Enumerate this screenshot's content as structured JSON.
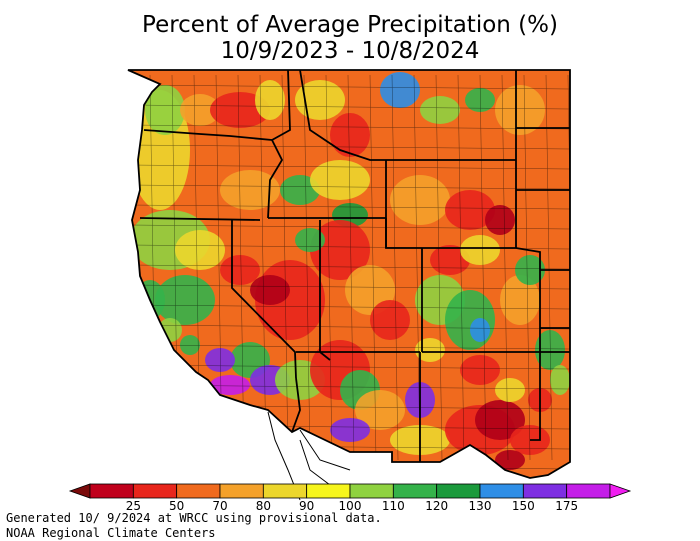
{
  "title": {
    "line1": "Percent of Average Precipitation (%)",
    "line2": "10/9/2023 - 10/8/2024"
  },
  "legend": {
    "ticks": [
      "25",
      "50",
      "70",
      "80",
      "90",
      "100",
      "110",
      "120",
      "130",
      "150",
      "175"
    ],
    "colors": [
      "#7a0a0a",
      "#c0001c",
      "#e8261c",
      "#f06a1e",
      "#f4a12a",
      "#ecd62c",
      "#f6f51c",
      "#8fd240",
      "#34b24a",
      "#1b9a3c",
      "#2e8ee6",
      "#7e2fe2",
      "#c41ee8",
      "#f01ef0"
    ]
  },
  "footer": {
    "line1": "Generated 10/ 9/2024 at WRCC using provisional data.",
    "line2": "NOAA Regional Climate Centers"
  },
  "map_colors": {
    "dry_severe": "#b00018",
    "dry": "#e8261c",
    "below": "#f06a1e",
    "slightly_below": "#f4a12a",
    "near": "#ecd62c",
    "normal": "#f6f51c",
    "above": "#8fd240",
    "wet": "#34b24a",
    "very_wet": "#1b9a3c",
    "blue": "#2e8ee6",
    "purple": "#7e2fe2",
    "magenta": "#c41ee8",
    "ocean": "#ffffff",
    "border": "#000000"
  }
}
